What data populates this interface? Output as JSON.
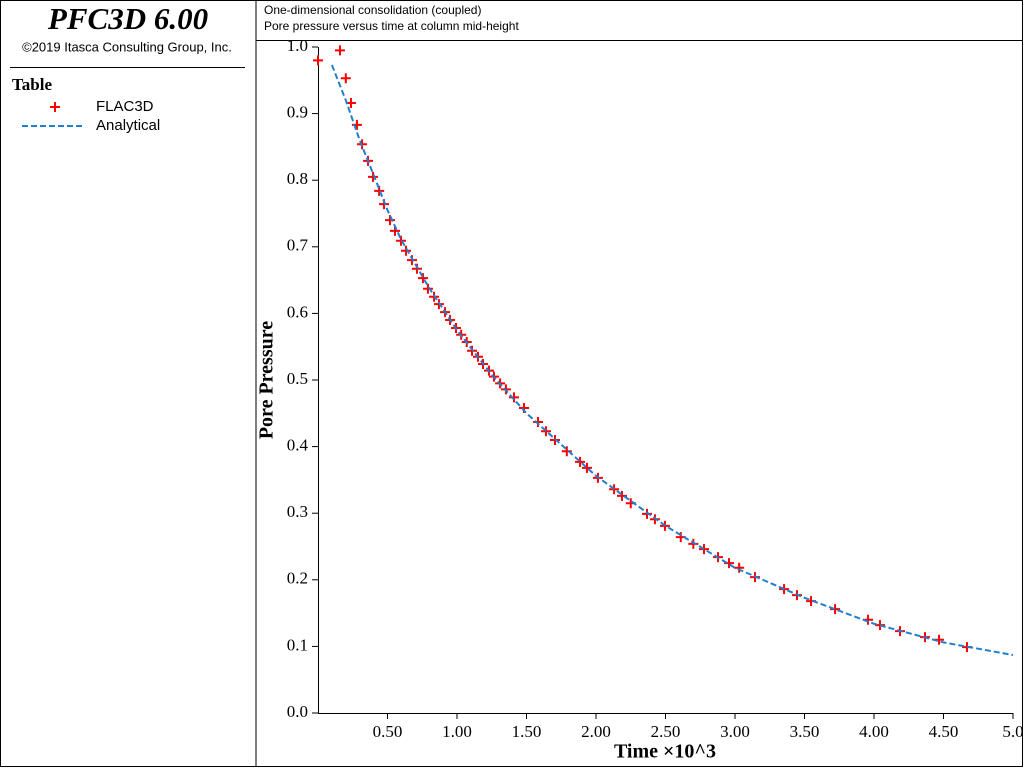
{
  "app": {
    "title": "PFC3D 6.00",
    "copyright": "©2019 Itasca Consulting Group, Inc."
  },
  "legend_title": "Table",
  "chart_data": {
    "type": "line",
    "title": "One-dimensional consolidation (coupled)",
    "subtitle": "Pore pressure versus time at column mid-height",
    "xlabel": "Time ×10^3",
    "ylabel": "Pore Pressure",
    "xlim": [
      0,
      5.0
    ],
    "ylim": [
      0,
      1.0
    ],
    "xticks": [
      {
        "value": 0.5,
        "label": "0.50"
      },
      {
        "value": 1.0,
        "label": "1.00"
      },
      {
        "value": 1.5,
        "label": "1.50"
      },
      {
        "value": 2.0,
        "label": "2.00"
      },
      {
        "value": 2.5,
        "label": "2.50"
      },
      {
        "value": 3.0,
        "label": "3.00"
      },
      {
        "value": 3.5,
        "label": "3.50"
      },
      {
        "value": 4.0,
        "label": "4.00"
      },
      {
        "value": 4.5,
        "label": "4.50"
      },
      {
        "value": 5.0,
        "label": "5.0"
      }
    ],
    "yticks": [
      {
        "value": 0,
        "label": "0.0"
      },
      0.1,
      0.2,
      0.3,
      0.4,
      0.5,
      0.6,
      0.7,
      0.8,
      0.9,
      {
        "value": 1.0,
        "label": "1.0"
      }
    ],
    "series": [
      {
        "name": "FLAC3D",
        "color": "#ff0000",
        "style": "cross",
        "x": [
          0,
          0.158,
          0.2,
          0.237,
          0.28,
          0.317,
          0.36,
          0.396,
          0.44,
          0.475,
          0.518,
          0.554,
          0.597,
          0.633,
          0.676,
          0.712,
          0.755,
          0.791,
          0.835,
          0.87,
          0.914,
          0.95,
          0.993,
          1.03,
          1.07,
          1.108,
          1.151,
          1.187,
          1.23,
          1.266,
          1.31,
          1.352,
          1.41,
          1.482,
          1.583,
          1.64,
          1.705,
          1.79,
          1.885,
          1.935,
          2.014,
          2.13,
          2.187,
          2.25,
          2.367,
          2.424,
          2.496,
          2.61,
          2.7,
          2.777,
          2.878,
          2.957,
          3.03,
          3.144,
          3.353,
          3.446,
          3.547,
          3.72,
          3.957,
          4.043,
          4.187,
          4.367,
          4.468,
          4.669
        ],
        "values": [
          0.98,
          0.995,
          0.953,
          0.916,
          0.883,
          0.854,
          0.829,
          0.805,
          0.784,
          0.764,
          0.74,
          0.724,
          0.709,
          0.694,
          0.68,
          0.667,
          0.653,
          0.637,
          0.625,
          0.614,
          0.602,
          0.59,
          0.578,
          0.568,
          0.557,
          0.544,
          0.535,
          0.524,
          0.514,
          0.505,
          0.495,
          0.486,
          0.474,
          0.458,
          0.437,
          0.423,
          0.41,
          0.393,
          0.377,
          0.368,
          0.353,
          0.336,
          0.326,
          0.315,
          0.299,
          0.291,
          0.281,
          0.264,
          0.254,
          0.246,
          0.234,
          0.225,
          0.218,
          0.204,
          0.186,
          0.177,
          0.168,
          0.156,
          0.14,
          0.132,
          0.123,
          0.114,
          0.11,
          0.099
        ]
      },
      {
        "name": "Analytical",
        "color": "#1f7fd0",
        "style": "dashed",
        "x": [
          0.1,
          0.2,
          0.3,
          0.4,
          0.5,
          0.6,
          0.8,
          1.0,
          1.25,
          1.5,
          2.0,
          2.5,
          3.0,
          3.5,
          4.0,
          4.5,
          5.0
        ],
        "values": [
          0.973,
          0.92,
          0.86,
          0.808,
          0.755,
          0.71,
          0.638,
          0.575,
          0.508,
          0.45,
          0.356,
          0.281,
          0.218,
          0.173,
          0.134,
          0.106,
          0.087
        ]
      }
    ]
  }
}
